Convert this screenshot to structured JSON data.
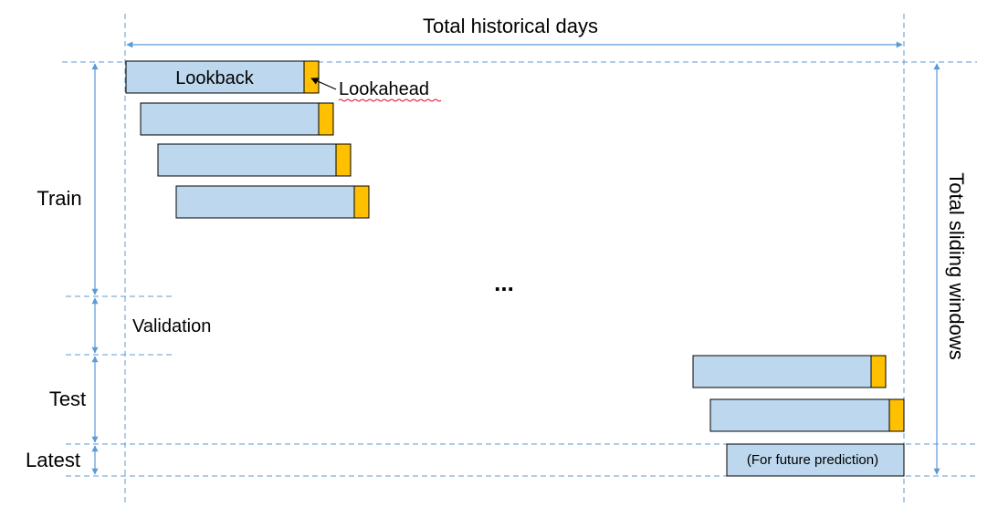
{
  "title": "Total historical days",
  "right_label": "Total sliding windows",
  "window_labels": {
    "lookback": "Lookback",
    "lookahead": "Lookahead"
  },
  "sections": {
    "train": "Train",
    "validation": "Validation",
    "test": "Test",
    "latest": "Latest"
  },
  "ellipsis": "...",
  "latest_window_label": "(For future prediction)",
  "colors": {
    "lookback_fill": "#bdd7ee",
    "lookahead_fill": "#ffc000",
    "guide_line": "#5b9bd5",
    "box_stroke": "#000000"
  }
}
